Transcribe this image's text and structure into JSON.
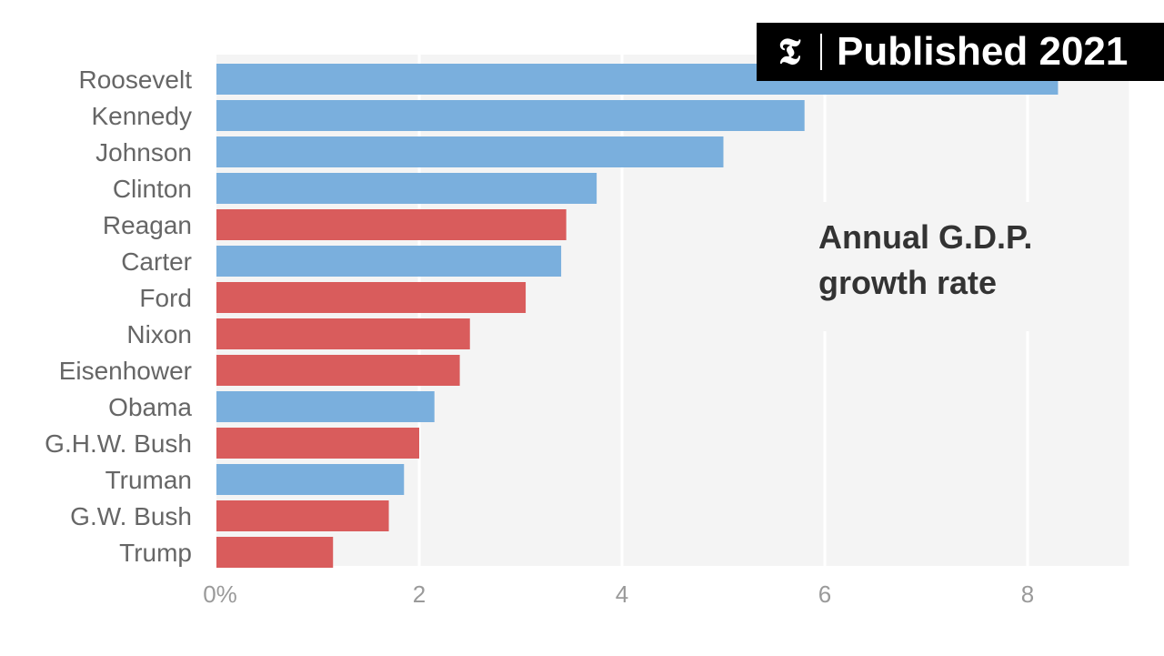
{
  "badge": {
    "logo_glyph": "𝕿",
    "text": "Published 2021"
  },
  "annotation": {
    "line1": "Annual G.D.P.",
    "line2": "growth rate"
  },
  "colors": {
    "democrat": "#7aafdd",
    "republican": "#d95c5c",
    "plot_background": "#f4f4f4",
    "gridline": "#ffffff"
  },
  "chart_data": {
    "type": "bar",
    "orientation": "horizontal",
    "categories": [
      "Roosevelt",
      "Kennedy",
      "Johnson",
      "Clinton",
      "Reagan",
      "Carter",
      "Ford",
      "Nixon",
      "Eisenhower",
      "Obama",
      "G.H.W. Bush",
      "Truman",
      "G.W. Bush",
      "Trump"
    ],
    "values": [
      8.3,
      5.8,
      5.0,
      3.75,
      3.45,
      3.4,
      3.05,
      2.5,
      2.4,
      2.15,
      2.0,
      1.85,
      1.7,
      1.15
    ],
    "party": [
      "democrat",
      "democrat",
      "democrat",
      "democrat",
      "republican",
      "democrat",
      "republican",
      "republican",
      "republican",
      "democrat",
      "republican",
      "democrat",
      "republican",
      "republican"
    ],
    "xticks": [
      0,
      2,
      4,
      6,
      8
    ],
    "xtick_labels": [
      "0%",
      "2",
      "4",
      "6",
      "8"
    ],
    "xlim": [
      0,
      9
    ],
    "grid": true,
    "title": "",
    "xlabel": "",
    "ylabel": ""
  }
}
